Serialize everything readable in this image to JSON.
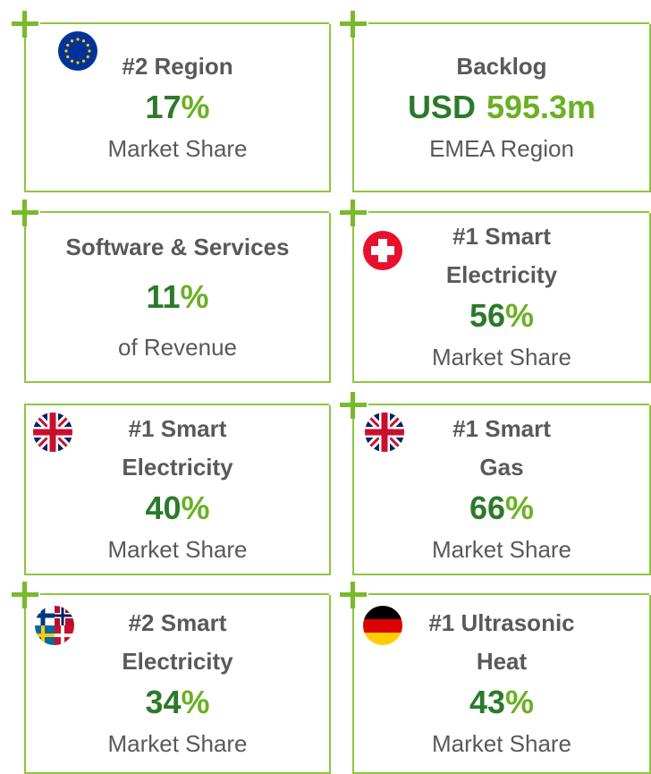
{
  "cards": [
    {
      "flag": "eu",
      "heading": [
        "#2 Region"
      ],
      "value": [
        {
          "text": "17",
          "color": "#2b7a2b"
        },
        {
          "text": "%",
          "color": "#6ab023"
        }
      ],
      "caption": "Market Share"
    },
    {
      "flag": null,
      "heading": [
        "Backlog"
      ],
      "value": [
        {
          "text": "USD",
          "color": "#2b7a2b"
        },
        {
          "text": "595.3m",
          "color": "#6ab023"
        }
      ],
      "caption": "EMEA Region"
    },
    {
      "flag": null,
      "heading": [
        "Software & Services"
      ],
      "value": [
        {
          "text": "11",
          "color": "#2b7a2b"
        },
        {
          "text": "%",
          "color": "#6ab023"
        }
      ],
      "caption": "of Revenue"
    },
    {
      "flag": "ch",
      "heading": [
        "#1 Smart",
        "Electricity"
      ],
      "value": [
        {
          "text": "56",
          "color": "#2b7a2b"
        },
        {
          "text": "%",
          "color": "#6ab023"
        }
      ],
      "caption": "Market Share"
    },
    {
      "flag": "uk",
      "heading": [
        "#1 Smart",
        "Electricity"
      ],
      "value": [
        {
          "text": "40",
          "color": "#2b7a2b"
        },
        {
          "text": "%",
          "color": "#6ab023"
        }
      ],
      "caption": "Market Share"
    },
    {
      "flag": "uk",
      "heading": [
        "#1 Smart",
        "Gas"
      ],
      "value": [
        {
          "text": "66",
          "color": "#2b7a2b"
        },
        {
          "text": "%",
          "color": "#6ab023"
        }
      ],
      "caption": "Market Share"
    },
    {
      "flag": "nordic",
      "heading": [
        "#2 Smart",
        "Electricity"
      ],
      "value": [
        {
          "text": "34",
          "color": "#2b7a2b"
        },
        {
          "text": "%",
          "color": "#6ab023"
        }
      ],
      "caption": "Market Share"
    },
    {
      "flag": "de",
      "heading": [
        "#1 Ultrasonic",
        "Heat"
      ],
      "value": [
        {
          "text": "43",
          "color": "#2b7a2b"
        },
        {
          "text": "%",
          "color": "#6ab023"
        }
      ],
      "caption": "Market Share"
    }
  ]
}
